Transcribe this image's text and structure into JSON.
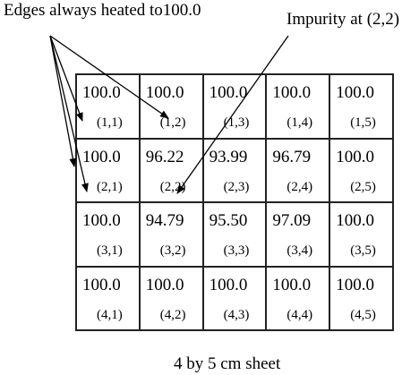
{
  "annotations": {
    "edges_label": "Edges always heated to100.0",
    "impurity_label": "Impurity at (2,2)"
  },
  "caption": "4 by 5 cm sheet",
  "grid": {
    "rows": [
      {
        "cells": [
          {
            "value": "100.0",
            "coord": "(1,1)"
          },
          {
            "value": "100.0",
            "coord": "(1,2)"
          },
          {
            "value": "100.0",
            "coord": "(1,3)"
          },
          {
            "value": "100.0",
            "coord": "(1,4)"
          },
          {
            "value": "100.0",
            "coord": "(1,5)"
          }
        ]
      },
      {
        "cells": [
          {
            "value": "100.0",
            "coord": "(2,1)"
          },
          {
            "value": "96.22",
            "coord": "(2,2)"
          },
          {
            "value": "93.99",
            "coord": "(2,3)"
          },
          {
            "value": "96.79",
            "coord": "(2,4)"
          },
          {
            "value": "100.0",
            "coord": "(2,5)"
          }
        ]
      },
      {
        "cells": [
          {
            "value": "100.0",
            "coord": "(3,1)"
          },
          {
            "value": "94.79",
            "coord": "(3,2)"
          },
          {
            "value": "95.50",
            "coord": "(3,3)"
          },
          {
            "value": "97.09",
            "coord": "(3,4)"
          },
          {
            "value": "100.0",
            "coord": "(3,5)"
          }
        ]
      },
      {
        "cells": [
          {
            "value": "100.0",
            "coord": "(4,1)"
          },
          {
            "value": "100.0",
            "coord": "(4,2)"
          },
          {
            "value": "100.0",
            "coord": "(4,3)"
          },
          {
            "value": "100.0",
            "coord": "(4,4)"
          },
          {
            "value": "100.0",
            "coord": "(4,5)"
          }
        ]
      }
    ]
  }
}
